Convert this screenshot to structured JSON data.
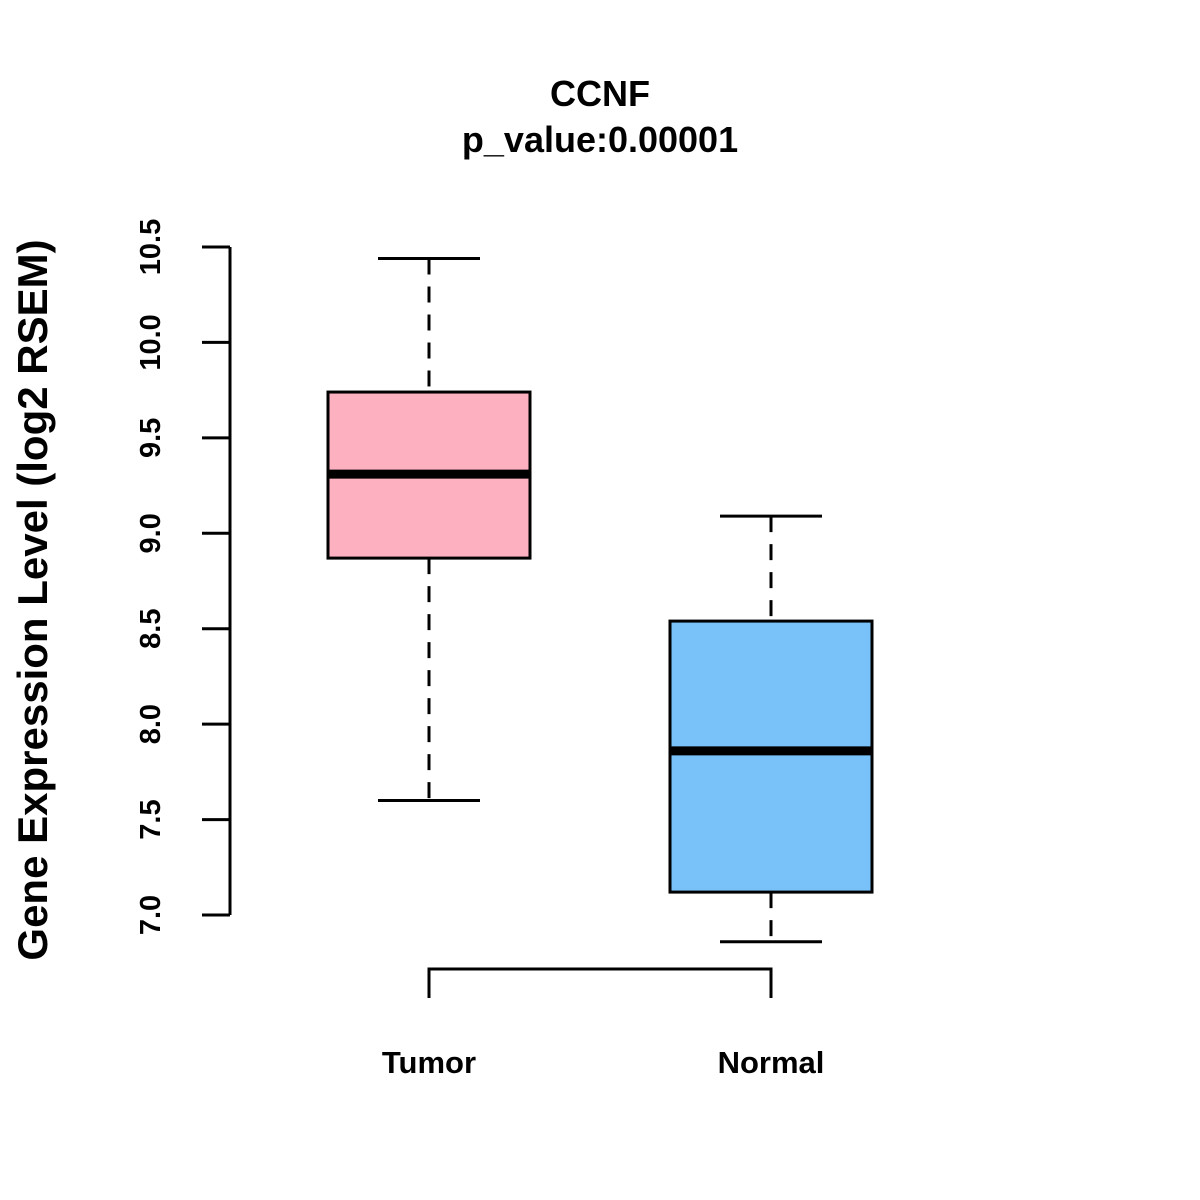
{
  "chart_data": {
    "type": "boxplot",
    "title": "CCNF",
    "subtitle": "p_value:0.00001",
    "xlabel": "",
    "ylabel": "Gene Expression Level (log2 RSEM)",
    "ylim": [
      7.0,
      10.5
    ],
    "yticks": [
      "7.0",
      "7.5",
      "8.0",
      "8.5",
      "9.0",
      "9.5",
      "10.0",
      "10.5"
    ],
    "categories": [
      "Tumor",
      "Normal"
    ],
    "boxes": [
      {
        "name": "Tumor",
        "whisker_low": 7.6,
        "q1": 8.87,
        "median": 9.31,
        "q3": 9.74,
        "whisker_high": 10.44,
        "color": "#FDB0C0"
      },
      {
        "name": "Normal",
        "whisker_low": 6.86,
        "q1": 7.12,
        "median": 7.86,
        "q3": 8.54,
        "whisker_high": 9.09,
        "color": "#79C2F9"
      }
    ],
    "comparison_bracket": [
      "Tumor",
      "Normal"
    ]
  }
}
